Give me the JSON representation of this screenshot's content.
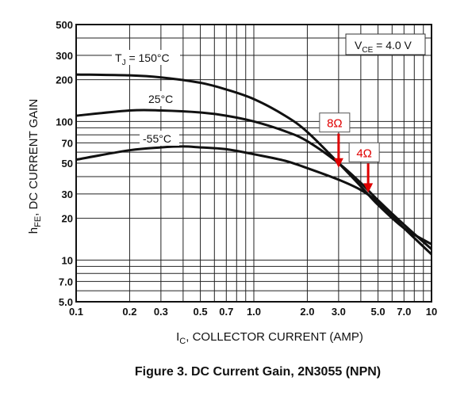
{
  "chart_data": {
    "type": "line",
    "title": "Figure 3. DC Current Gain, 2N3055 (NPN)",
    "xlabel_main": "I",
    "xlabel_sub": "C",
    "xlabel_rest": ", COLLECTOR CURRENT (AMP)",
    "ylabel_main": "h",
    "ylabel_sub": "FE",
    "ylabel_rest": ", DC CURRENT GAIN",
    "x_scale": "log",
    "y_scale": "log",
    "xlim": [
      0.1,
      10
    ],
    "ylim": [
      5,
      500
    ],
    "grid": true,
    "x_ticks": [
      {
        "v": 0.1,
        "label": "0.1"
      },
      {
        "v": 0.2,
        "label": "0.2"
      },
      {
        "v": 0.3,
        "label": "0.3"
      },
      {
        "v": 0.5,
        "label": "0.5"
      },
      {
        "v": 0.7,
        "label": "0.7"
      },
      {
        "v": 1.0,
        "label": "1.0"
      },
      {
        "v": 2.0,
        "label": "2.0"
      },
      {
        "v": 3.0,
        "label": "3.0"
      },
      {
        "v": 5.0,
        "label": "5.0"
      },
      {
        "v": 7.0,
        "label": "7.0"
      },
      {
        "v": 10,
        "label": "10"
      }
    ],
    "y_ticks": [
      {
        "v": 5.0,
        "label": "5.0"
      },
      {
        "v": 7.0,
        "label": "7.0"
      },
      {
        "v": 10,
        "label": "10"
      },
      {
        "v": 20,
        "label": "20"
      },
      {
        "v": 30,
        "label": "30"
      },
      {
        "v": 50,
        "label": "50"
      },
      {
        "v": 70,
        "label": "70"
      },
      {
        "v": 100,
        "label": "100"
      },
      {
        "v": 200,
        "label": "200"
      },
      {
        "v": 300,
        "label": "300"
      },
      {
        "v": 500,
        "label": "500"
      }
    ],
    "condition_main": "V",
    "condition_sub": "CE",
    "condition_rest": " = 4.0 V",
    "series": [
      {
        "name_main": "T",
        "name_sub": "J",
        "name_rest": " = 150°C",
        "x": [
          0.1,
          0.2,
          0.3,
          0.5,
          0.7,
          1.0,
          1.5,
          2.0,
          3.0,
          4.0,
          5.0,
          7.0,
          10
        ],
        "y": [
          218,
          215,
          208,
          190,
          170,
          145,
          110,
          84,
          50,
          34,
          25,
          17,
          13
        ]
      },
      {
        "name": "25°C",
        "x": [
          0.1,
          0.2,
          0.3,
          0.5,
          0.7,
          1.0,
          1.5,
          2.0,
          3.0,
          4.0,
          5.0,
          7.0,
          10
        ],
        "y": [
          110,
          120,
          120,
          116,
          110,
          100,
          85,
          72,
          50,
          36,
          27,
          18,
          12
        ]
      },
      {
        "name": "-55°C",
        "x": [
          0.1,
          0.2,
          0.3,
          0.4,
          0.5,
          0.7,
          1.0,
          1.5,
          2.0,
          3.0,
          4.0,
          5.0,
          7.0,
          10
        ],
        "y": [
          53,
          62,
          65,
          66,
          65,
          63,
          58,
          52,
          46,
          38,
          32,
          26,
          17,
          11
        ]
      }
    ],
    "annotations": [
      {
        "text": "8Ω",
        "x": 3.0,
        "y_top": 70,
        "y_tip": 47
      },
      {
        "text": "4Ω",
        "x": 4.4,
        "y_top": 50,
        "y_tip": 31
      }
    ]
  }
}
